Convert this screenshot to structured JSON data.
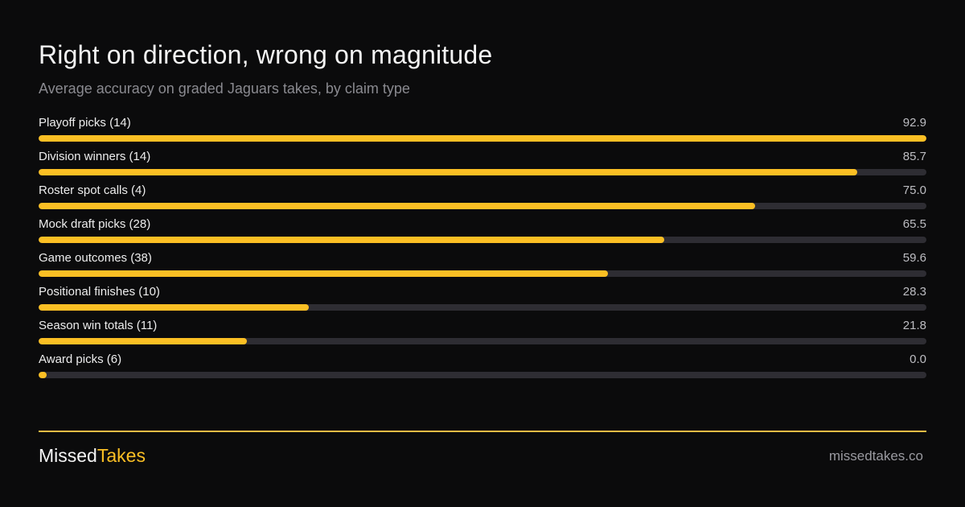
{
  "colors": {
    "background": "#0b0b0c",
    "accent": "#fbbf24",
    "track": "#2e2d33",
    "divider": "#f2bc45"
  },
  "chart_data": {
    "type": "bar",
    "orientation": "horizontal",
    "title": "Right on direction, wrong on magnitude",
    "subtitle": "Average accuracy on graded Jaguars takes, by claim type",
    "xlim": [
      0,
      92.9
    ],
    "grid": false,
    "categories": [
      "Playoff picks (14)",
      "Division winners (14)",
      "Roster spot calls (4)",
      "Mock draft picks (28)",
      "Game outcomes (38)",
      "Positional finishes (10)",
      "Season win totals (11)",
      "Award picks (6)"
    ],
    "values": [
      92.9,
      85.7,
      75.0,
      65.5,
      59.6,
      28.3,
      21.8,
      0.0
    ],
    "value_labels": [
      "92.9",
      "85.7",
      "75.0",
      "65.5",
      "59.6",
      "28.3",
      "21.8",
      "0.0"
    ]
  },
  "footer": {
    "brand_part1": "Missed",
    "brand_part2": "Takes",
    "url": "missedtakes.co"
  }
}
